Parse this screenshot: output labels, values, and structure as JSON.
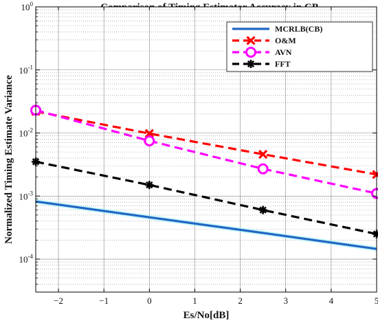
{
  "chart_data": {
    "type": "line",
    "title": "Comparison of Timing Estimator Accuracy in CB",
    "xlabel": "Es/No[dB]",
    "ylabel": "Normalized Timing Estimate Variance",
    "xlim": [
      -2.5,
      5
    ],
    "ylim": [
      3e-05,
      1
    ],
    "yscale": "log",
    "x_ticks": [
      -2,
      -1,
      0,
      1,
      2,
      3,
      4,
      5
    ],
    "y_tick_bases": [
      "10",
      "10",
      "10",
      "10",
      "10"
    ],
    "y_tick_exponents": [
      "0",
      "-1",
      "-2",
      "-3",
      "-4"
    ],
    "y_tick_values": [
      1,
      0.1,
      0.01,
      0.001,
      0.0001
    ],
    "grid": true,
    "legend_position": "top-right",
    "x": [
      -2.5,
      0,
      2.5,
      5
    ],
    "series": [
      {
        "name": "MCRLB(CB)",
        "values": [
          0.00082,
          0.00046,
          0.00026,
          0.000145
        ],
        "color": "#2166c4",
        "marker": "none",
        "line_style": "solid"
      },
      {
        "name": "O&M",
        "values": [
          0.022,
          0.0098,
          0.0046,
          0.0022
        ],
        "color": "#ff0000",
        "marker": "x",
        "line_style": "dashed"
      },
      {
        "name": "AVN",
        "values": [
          0.023,
          0.0075,
          0.0027,
          0.0011
        ],
        "color": "#ff00ff",
        "marker": "circle",
        "line_style": "dashed"
      },
      {
        "name": "FFT",
        "values": [
          0.0035,
          0.0015,
          0.0006,
          0.00025
        ],
        "color": "#000000",
        "marker": "asterisk",
        "line_style": "dashed"
      }
    ]
  }
}
